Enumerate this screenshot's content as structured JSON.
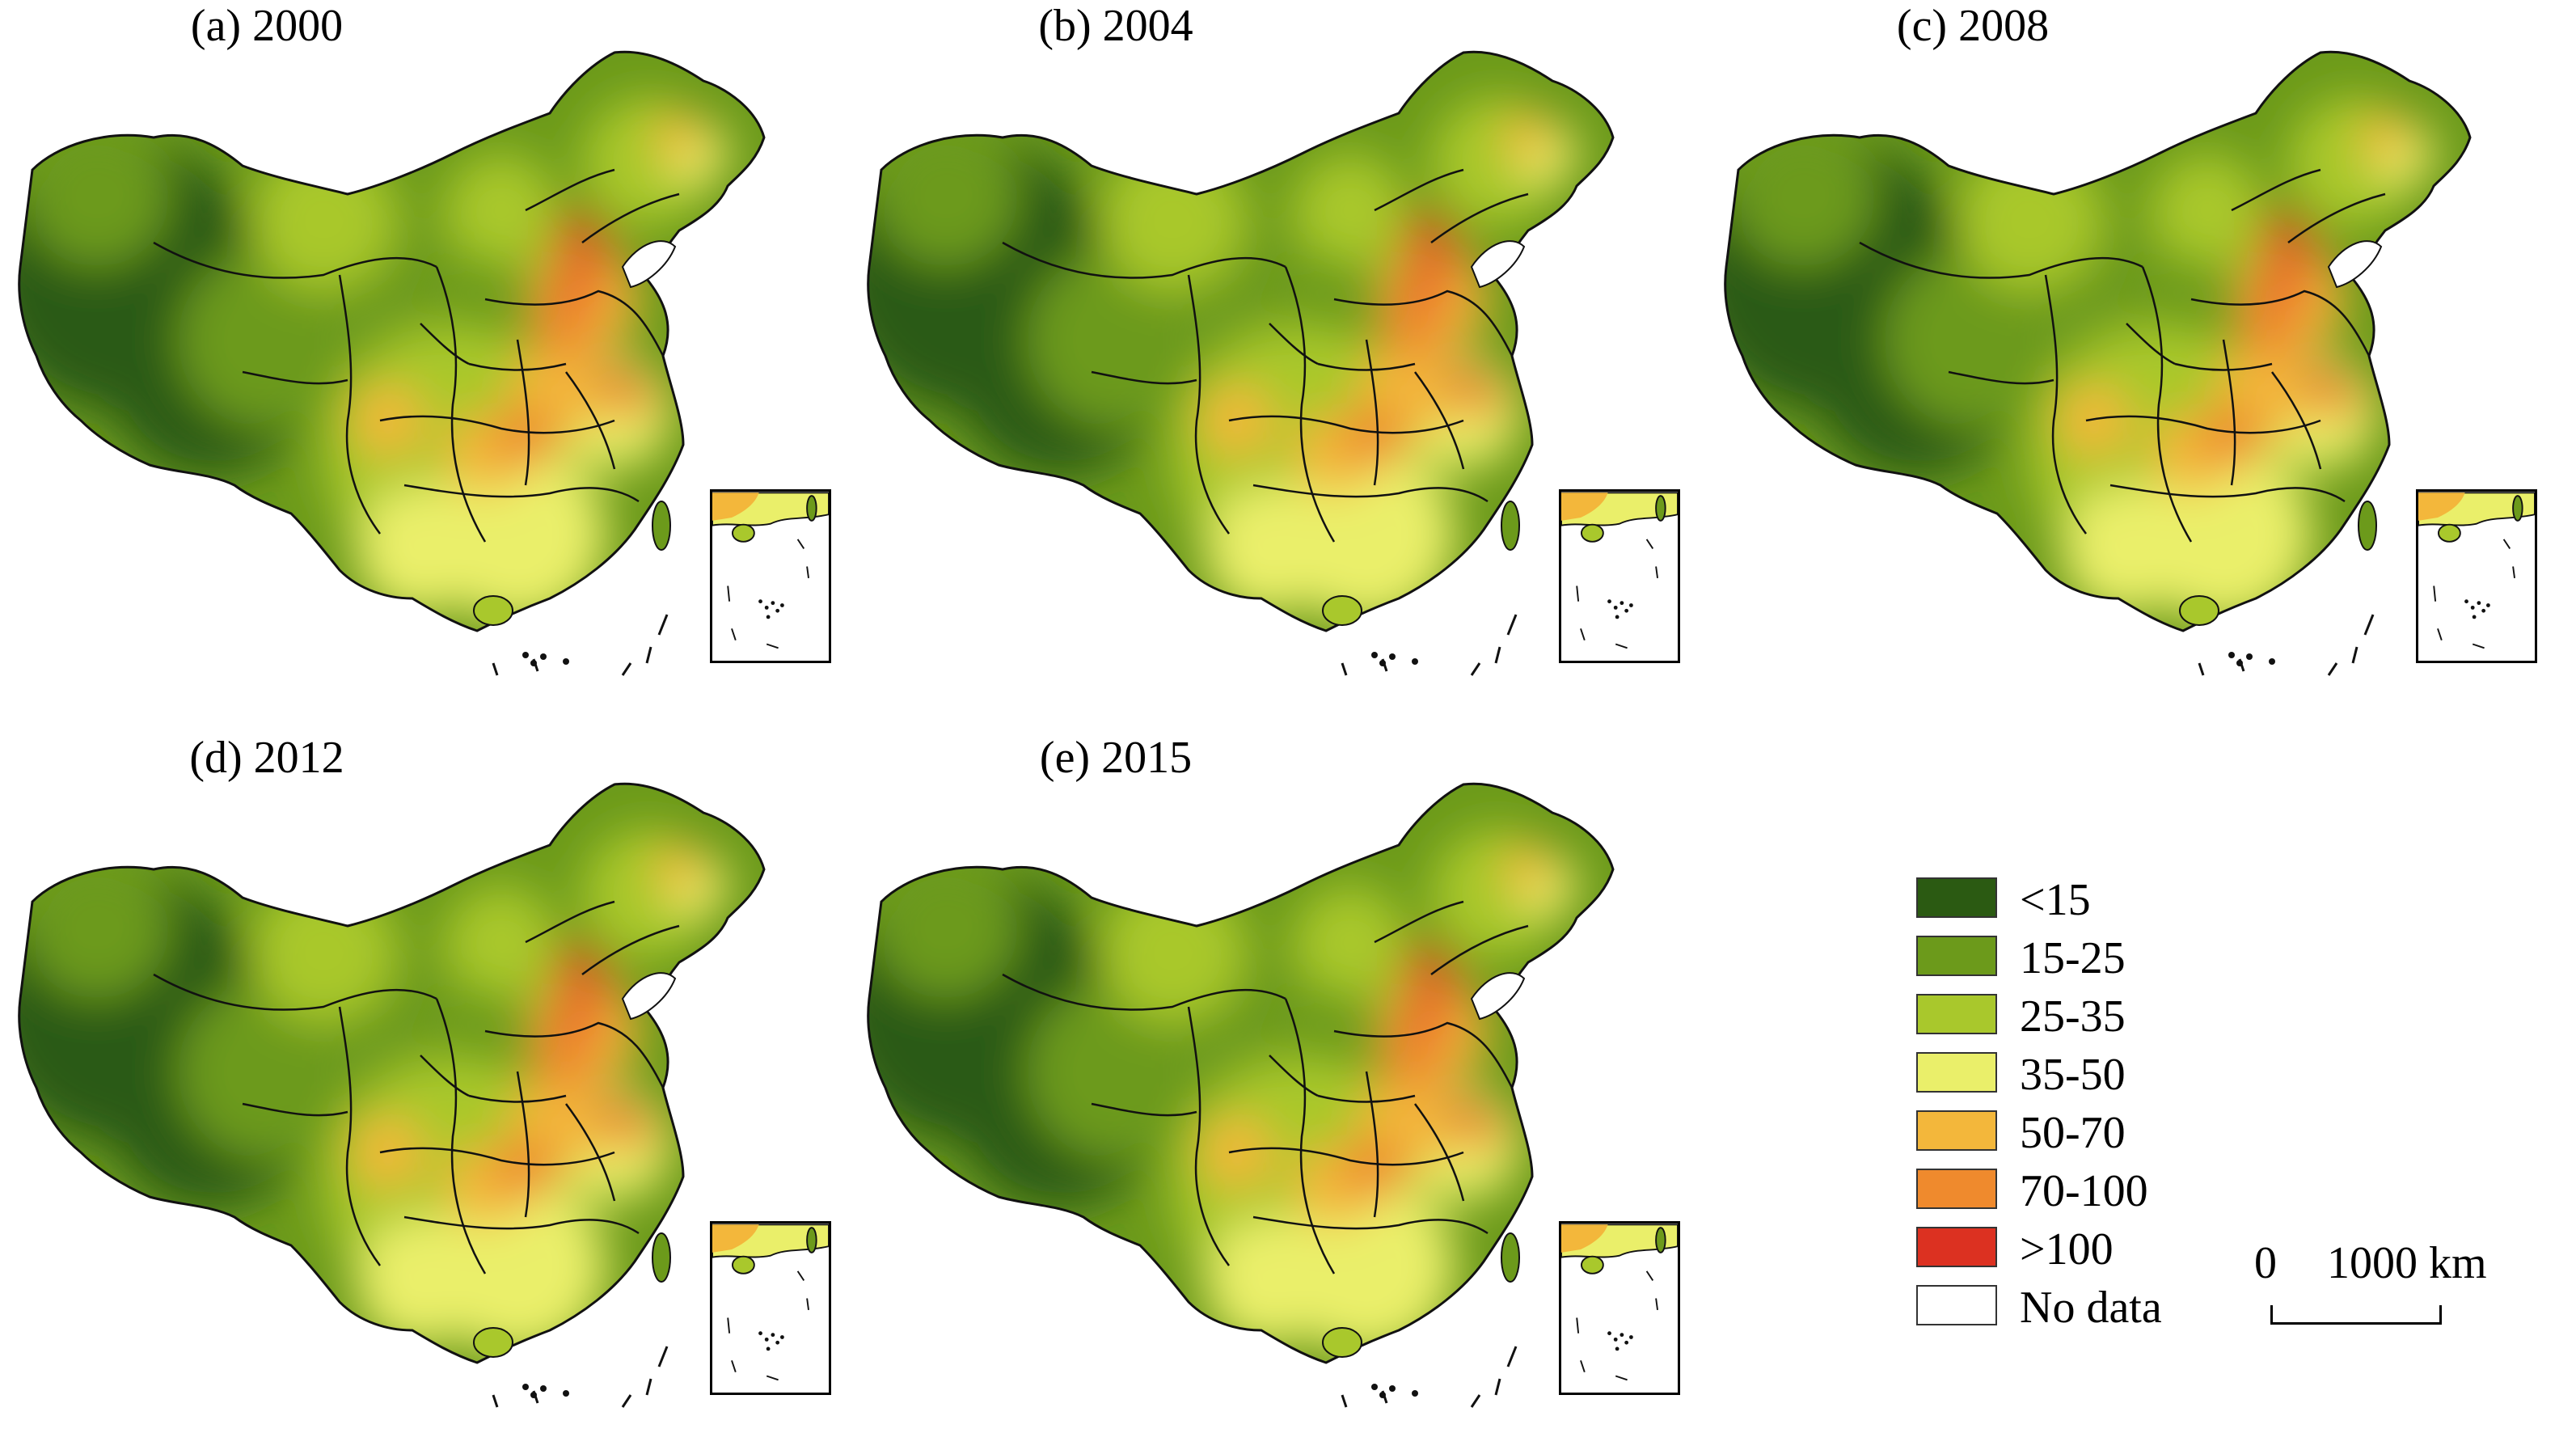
{
  "panels": [
    {
      "title": "(a) 2000"
    },
    {
      "title": "(b) 2004"
    },
    {
      "title": "(c) 2008"
    },
    {
      "title": "(d) 2012"
    },
    {
      "title": "(e) 2015"
    }
  ],
  "legend": {
    "items": [
      {
        "label": "<15",
        "color": "#2b5a12"
      },
      {
        "label": "15-25",
        "color": "#6c9a1b"
      },
      {
        "label": "25-35",
        "color": "#a9c82c"
      },
      {
        "label": "35-50",
        "color": "#eaef6a"
      },
      {
        "label": "50-70",
        "color": "#f3b73b"
      },
      {
        "label": "70-100",
        "color": "#ef8a2d"
      },
      {
        "label": ">100",
        "color": "#dc3121"
      },
      {
        "label": "No data",
        "color": "#ffffff"
      }
    ]
  },
  "scalebar": {
    "start": "0",
    "end": "1000 km"
  }
}
